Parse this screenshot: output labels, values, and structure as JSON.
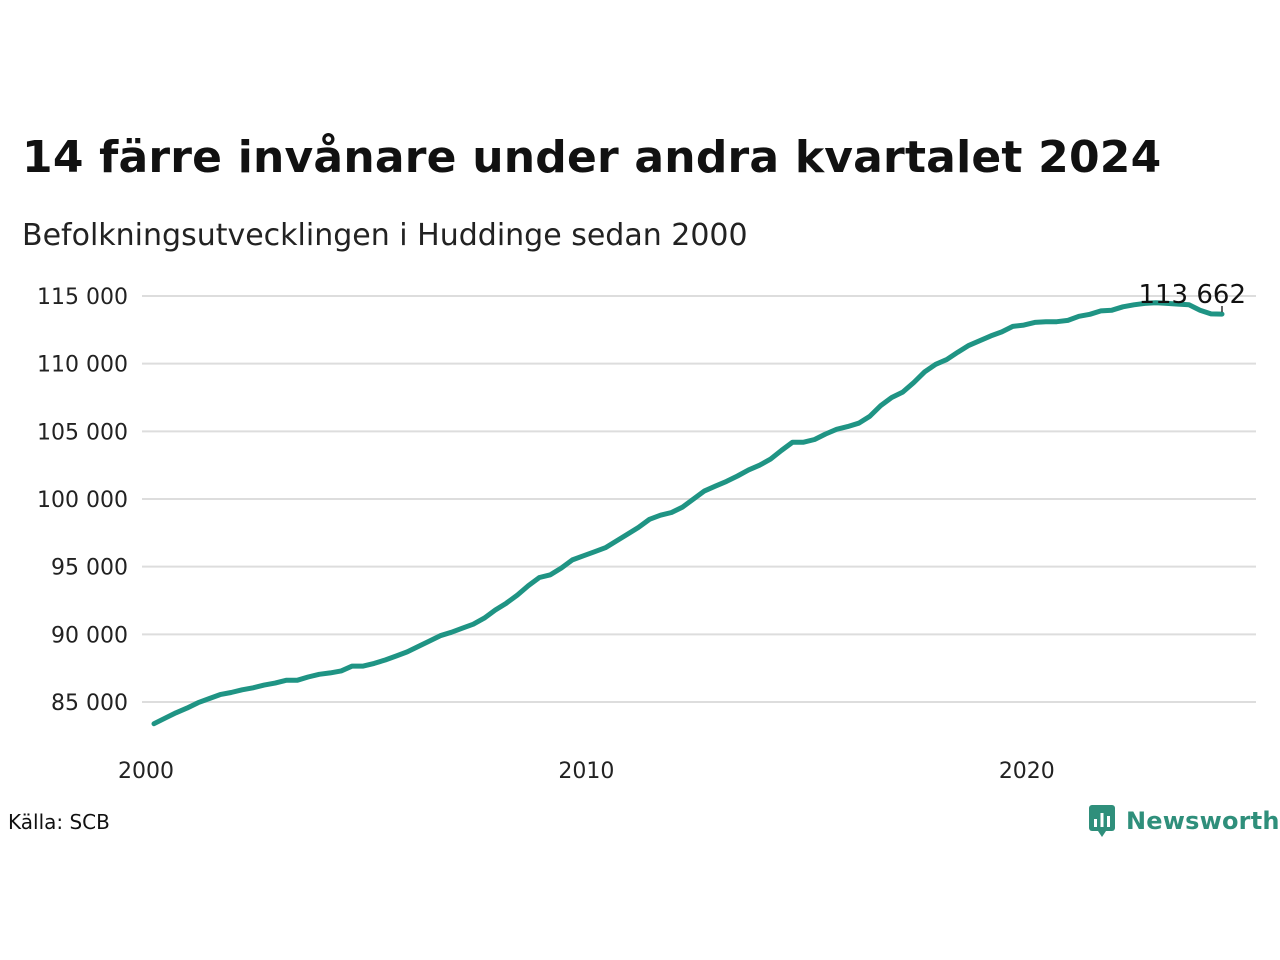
{
  "title": "14 färre invånare under andra kvartalet 2024",
  "subtitle": "Befolkningsutvecklingen i Huddinge sedan 2000",
  "source": "Källa: SCB",
  "brand": {
    "name": "Newsworthy",
    "icon": "newsworthy-logo-icon"
  },
  "colors": {
    "line": "#1f9484",
    "grid": "#dddddd",
    "brand": "#2f8f7b"
  },
  "chart_data": {
    "type": "line",
    "title": "14 färre invånare under andra kvartalet 2024",
    "subtitle": "Befolkningsutvecklingen i Huddinge sedan 2000",
    "xlabel": "",
    "ylabel": "",
    "x_ticks": [
      2000,
      2010,
      2020
    ],
    "y_ticks": [
      85000,
      90000,
      95000,
      100000,
      105000,
      110000,
      115000
    ],
    "y_tick_labels": [
      "85 000",
      "90 000",
      "95 000",
      "100 000",
      "105 000",
      "110 000",
      "115 000"
    ],
    "xlim": [
      2000,
      2025.25
    ],
    "ylim": [
      82000,
      115800
    ],
    "grid": true,
    "end_label": "113 662",
    "series": [
      {
        "x": [
          2000.0,
          2000.25,
          2000.5,
          2000.75,
          2001.0,
          2001.25,
          2001.5,
          2001.75,
          2002.0,
          2002.25,
          2002.5,
          2002.75,
          2003.0,
          2003.25,
          2003.5,
          2003.75,
          2004.0,
          2004.25,
          2004.5,
          2004.75,
          2005.0,
          2005.25,
          2005.5,
          2005.75,
          2006.0,
          2006.25,
          2006.5,
          2006.75,
          2007.0,
          2007.25,
          2007.5,
          2007.75,
          2008.0,
          2008.25,
          2008.5,
          2008.75,
          2009.0,
          2009.25,
          2009.5,
          2009.75,
          2010.0,
          2010.25,
          2010.5,
          2010.75,
          2011.0,
          2011.25,
          2011.5,
          2011.75,
          2012.0,
          2012.25,
          2012.5,
          2012.75,
          2013.0,
          2013.25,
          2013.5,
          2013.75,
          2014.0,
          2014.25,
          2014.5,
          2014.75,
          2015.0,
          2015.25,
          2015.5,
          2015.75,
          2016.0,
          2016.25,
          2016.5,
          2016.75,
          2017.0,
          2017.25,
          2017.5,
          2017.75,
          2018.0,
          2018.25,
          2018.5,
          2018.75,
          2019.0,
          2019.25,
          2019.5,
          2019.75,
          2020.0,
          2020.25,
          2020.5,
          2020.75,
          2021.0,
          2021.25,
          2021.5,
          2021.75,
          2022.0,
          2022.25,
          2022.5,
          2022.75,
          2023.0,
          2023.25,
          2023.5,
          2023.75,
          2024.0,
          2024.25
        ],
        "y": [
          83400,
          83800,
          84200,
          84550,
          84950,
          85250,
          85550,
          85700,
          85900,
          86050,
          86250,
          86400,
          86600,
          86600,
          86850,
          87050,
          87150,
          87300,
          87650,
          87650,
          87850,
          88100,
          88400,
          88700,
          89100,
          89500,
          89900,
          90150,
          90450,
          90750,
          91200,
          91800,
          92300,
          92900,
          93600,
          94200,
          94400,
          94900,
          95500,
          95800,
          96100,
          96400,
          96900,
          97400,
          97900,
          98500,
          98800,
          99000,
          99400,
          100000,
          100600,
          100950,
          101300,
          101700,
          102150,
          102500,
          102950,
          103600,
          104200,
          104200,
          104400,
          104800,
          105150,
          105350,
          105600,
          106100,
          106900,
          107500,
          107900,
          108600,
          109400,
          109950,
          110300,
          110850,
          111350,
          111700,
          112050,
          112350,
          112750,
          112850,
          113050,
          113100,
          113100,
          113200,
          113500,
          113650,
          113900,
          113950,
          114200,
          114350,
          114450,
          114500,
          114450,
          114400,
          114350,
          113950,
          113676,
          113662
        ]
      }
    ]
  }
}
